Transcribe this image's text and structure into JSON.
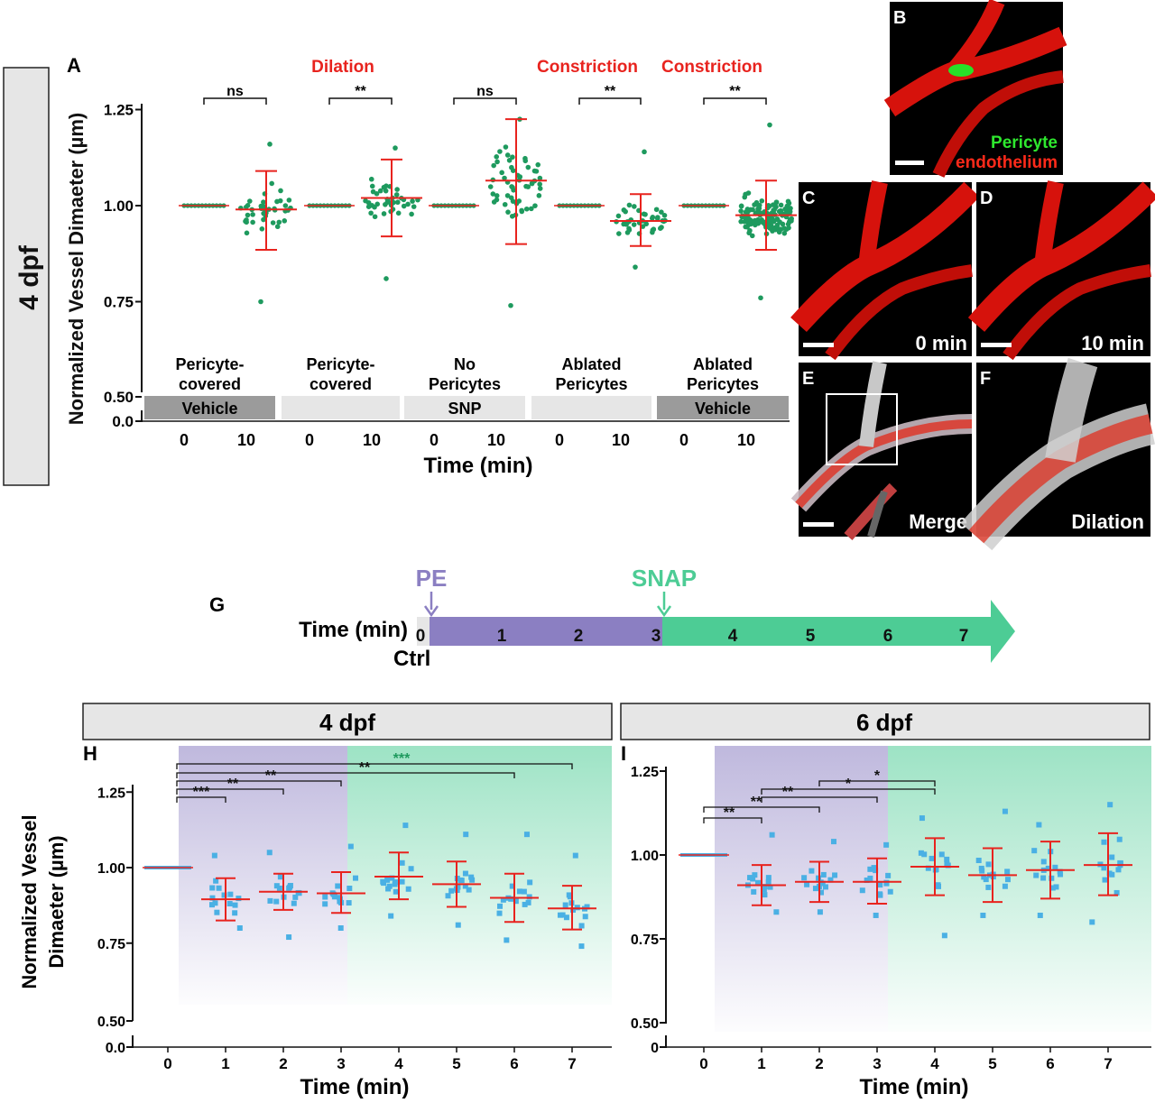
{
  "panels": {
    "A": "A",
    "B": "B",
    "C": "C",
    "D": "D",
    "E": "E",
    "F": "F",
    "G": "G",
    "H": "H",
    "I": "I"
  },
  "side_label": "4 dpf",
  "colors": {
    "red": "#e8231e",
    "green_dots": "#1e9a5e",
    "blue_squares": "#4ab0e4",
    "purple": "#8b7fc2",
    "teal": "#4dcc95",
    "gray_dark": "#9b9b9b",
    "gray_light": "#e6e6e6"
  },
  "panel_A": {
    "ylabel": "Normalized  Vessel Dimaeter (µm)",
    "xlabel": "Time (min)",
    "yticks": [
      "1.25",
      "1.00",
      "0.75",
      "0.50",
      "0.0"
    ],
    "xticks": [
      "0",
      "10",
      "0",
      "10",
      "0",
      "10",
      "0",
      "10",
      "0",
      "10"
    ],
    "headers": [
      "",
      "Dilation",
      "",
      "Constriction",
      "Constriction"
    ],
    "significance": [
      "ns",
      "**",
      "ns",
      "**",
      "**"
    ],
    "groups": [
      {
        "line1": "Pericyte-",
        "line2": "covered",
        "bar": "Vehicle",
        "bar_style": "dark"
      },
      {
        "line1": "Pericyte-",
        "line2": "covered",
        "bar": "",
        "bar_style": "light"
      },
      {
        "line1": "No",
        "line2": "Pericytes",
        "bar": "SNP",
        "bar_style": "light"
      },
      {
        "line1": "Ablated",
        "line2": "Pericytes",
        "bar": "",
        "bar_style": "light"
      },
      {
        "line1": "Ablated",
        "line2": "Pericytes",
        "bar": "Vehicle",
        "bar_style": "dark"
      }
    ],
    "chart_data": {
      "type": "scatter",
      "ylim": [
        0.0,
        1.25
      ],
      "groups": [
        {
          "t0": 1.0,
          "t10_mean": 0.99,
          "t10_sd": [
            0.885,
            1.09
          ],
          "t10_range": [
            0.75,
            1.16
          ],
          "n": 40
        },
        {
          "t0": 1.0,
          "t10_mean": 1.02,
          "t10_sd": [
            0.92,
            1.12
          ],
          "t10_range": [
            0.81,
            1.15
          ],
          "n": 40
        },
        {
          "t0": 1.0,
          "t10_mean": 1.065,
          "t10_sd": [
            0.9,
            1.225
          ],
          "t10_range": [
            0.74,
            1.225
          ],
          "n": 55
        },
        {
          "t0": 1.0,
          "t10_mean": 0.96,
          "t10_sd": [
            0.895,
            1.03
          ],
          "t10_range": [
            0.84,
            1.14
          ],
          "n": 40
        },
        {
          "t0": 1.0,
          "t10_mean": 0.975,
          "t10_sd": [
            0.885,
            1.065
          ],
          "t10_range": [
            0.76,
            1.21
          ],
          "n": 130
        }
      ]
    }
  },
  "images": {
    "B": {
      "label_green": "Pericyte",
      "label_red": "endothelium"
    },
    "C": {
      "time": "0 min"
    },
    "D": {
      "time": "10 min"
    },
    "E": {
      "caption": "Merge"
    },
    "F": {
      "caption": "Dilation"
    }
  },
  "panel_G": {
    "time_label": "Time (min)",
    "ctrl": "Ctrl",
    "pe": "PE",
    "snap": "SNAP",
    "ticks": [
      "0",
      "1",
      "2",
      "3",
      "4",
      "5",
      "6",
      "7"
    ]
  },
  "panel_H": {
    "header": "4 dpf",
    "ylabel_line1": "Normalized  Vessel",
    "ylabel_line2": "Dimaeter (µm)",
    "xlabel": "Time (min)",
    "yticks": [
      "1.25",
      "1.00",
      "0.75",
      "0.50",
      "0.0"
    ],
    "xticks": [
      "0",
      "1",
      "2",
      "3",
      "4",
      "5",
      "6",
      "7"
    ],
    "brackets": [
      {
        "to": 1,
        "label": "***"
      },
      {
        "to": 2,
        "label": "**"
      },
      {
        "to": 3,
        "label": "**"
      },
      {
        "to": 6,
        "label": "**"
      },
      {
        "to": 7,
        "label": "***"
      }
    ],
    "chart_data": {
      "type": "scatter",
      "ylim": [
        0.0,
        1.25
      ],
      "x": [
        0,
        1,
        2,
        3,
        4,
        5,
        6,
        7
      ],
      "mean": [
        1.0,
        0.895,
        0.92,
        0.915,
        0.97,
        0.945,
        0.9,
        0.865
      ],
      "sd_low": [
        1.0,
        0.825,
        0.86,
        0.85,
        0.895,
        0.87,
        0.82,
        0.795
      ],
      "sd_high": [
        1.0,
        0.965,
        0.98,
        0.985,
        1.05,
        1.02,
        0.98,
        0.94
      ],
      "range_low": [
        1.0,
        0.8,
        0.77,
        0.8,
        0.84,
        0.81,
        0.76,
        0.74
      ],
      "range_high": [
        1.0,
        1.04,
        1.05,
        1.07,
        1.14,
        1.11,
        1.11,
        1.04
      ]
    }
  },
  "panel_I": {
    "header": "6 dpf",
    "xlabel": "Time (min)",
    "yticks": [
      "1.25",
      "1.00",
      "0.75",
      "0.50",
      "0"
    ],
    "xticks": [
      "0",
      "1",
      "2",
      "3",
      "4",
      "5",
      "6",
      "7"
    ],
    "brackets": [
      {
        "from": 0,
        "to": 1,
        "label": "**"
      },
      {
        "from": 0,
        "to": 2,
        "label": "**"
      },
      {
        "from": 1,
        "to": 3,
        "label": "**"
      },
      {
        "from": 1,
        "to": 4,
        "label": "*"
      },
      {
        "from": 2,
        "to": 4,
        "label": "*"
      }
    ],
    "chart_data": {
      "type": "scatter",
      "ylim": [
        0.0,
        1.25
      ],
      "x": [
        0,
        1,
        2,
        3,
        4,
        5,
        6,
        7
      ],
      "mean": [
        1.0,
        0.91,
        0.92,
        0.92,
        0.965,
        0.94,
        0.955,
        0.97
      ],
      "sd_low": [
        1.0,
        0.85,
        0.86,
        0.855,
        0.88,
        0.86,
        0.87,
        0.88
      ],
      "sd_high": [
        1.0,
        0.97,
        0.98,
        0.99,
        1.05,
        1.02,
        1.04,
        1.065
      ],
      "range_low": [
        1.0,
        0.83,
        0.83,
        0.82,
        0.76,
        0.82,
        0.82,
        0.8
      ],
      "range_high": [
        1.0,
        1.06,
        1.04,
        1.03,
        1.11,
        1.13,
        1.09,
        1.15
      ]
    }
  }
}
